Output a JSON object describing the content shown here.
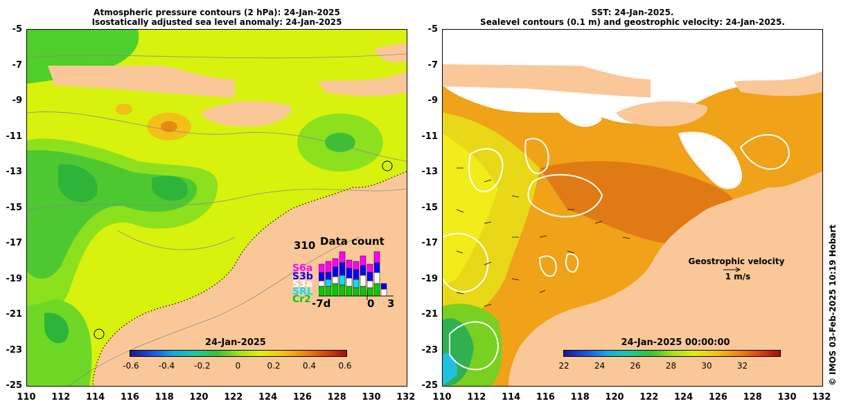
{
  "left": {
    "title_line1": "Atmospheric pressure contours (2 hPa): 24-Jan-2025",
    "title_line2": "Isostatically adjusted sea level anomaly: 24-Jan-2025",
    "colorbar": {
      "label": "24-Jan-2025",
      "ticks": [
        "-0.6",
        "-0.4",
        "-0.2",
        "0",
        "0.2",
        "0.4",
        "0.6"
      ]
    },
    "data_count": {
      "title": "Data count",
      "max": "310",
      "satellites": [
        {
          "name": "S6a",
          "color": "#ff00ff"
        },
        {
          "name": "S3b",
          "color": "#0000ff"
        },
        {
          "name": "S3a",
          "color": "#ffffff"
        },
        {
          "name": "SRL",
          "color": "#00e0ff"
        },
        {
          "name": "Cr2",
          "color": "#00cc00"
        }
      ],
      "x_ticks": [
        "-7d",
        "0",
        "3"
      ]
    }
  },
  "right": {
    "title_line1": "SST: 24-Jan-2025.",
    "title_line2": "Sealevel contours (0.1 m) and geostrophic velocity: 24-Jan-2025.",
    "colorbar": {
      "label": "24-Jan-2025 00:00:00",
      "ticks": [
        "22",
        "24",
        "26",
        "28",
        "30",
        "32"
      ]
    },
    "geo_label": "Geostrophic velocity",
    "geo_scale": "1 m/s"
  },
  "axes": {
    "y_ticks": [
      "-5",
      "-7",
      "-9",
      "-11",
      "-13",
      "-15",
      "-17",
      "-19",
      "-21",
      "-23",
      "-25"
    ],
    "x_ticks": [
      "110",
      "112",
      "114",
      "116",
      "118",
      "120",
      "122",
      "124",
      "126",
      "128",
      "130",
      "132"
    ]
  },
  "credit": "© IMOS 03-Feb-2025 10:19 Hobart"
}
